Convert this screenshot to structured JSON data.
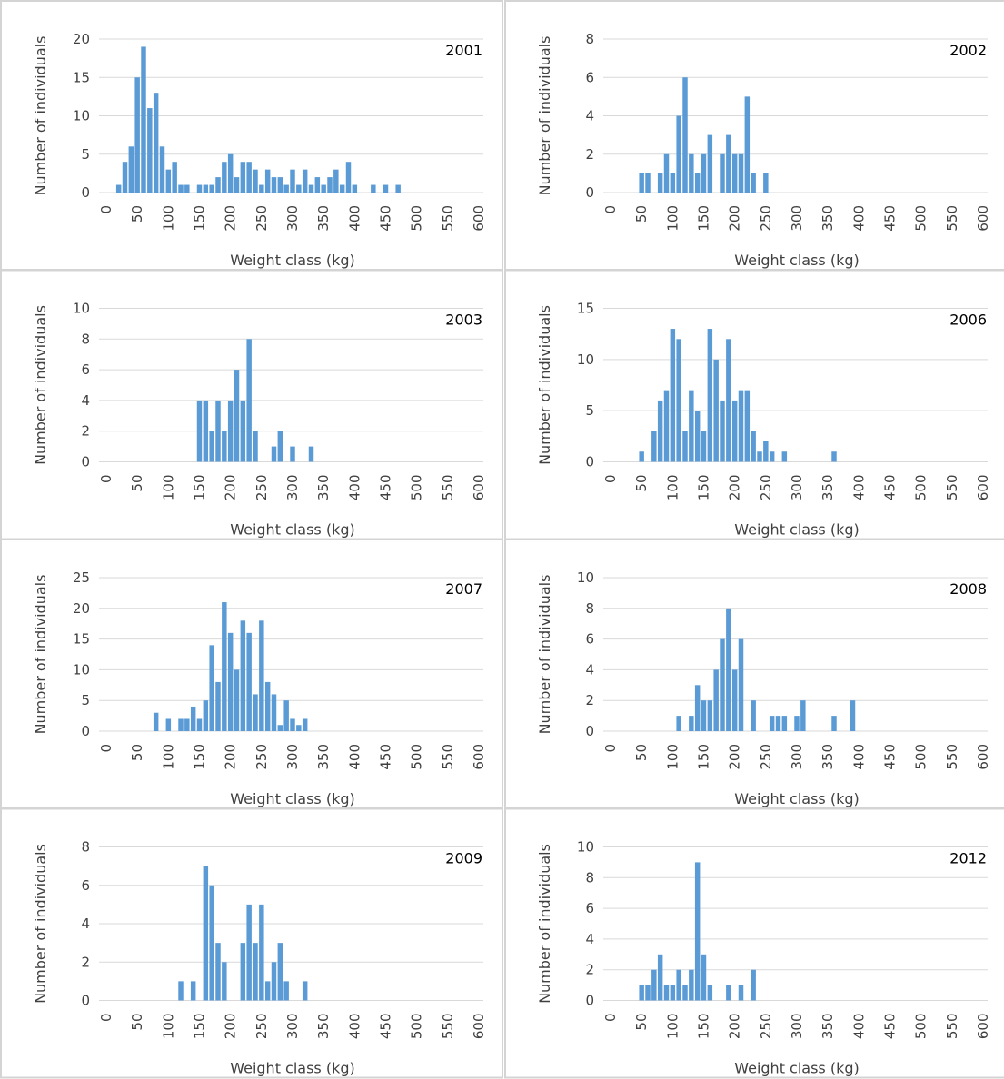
{
  "chart_data": [
    {
      "type": "bar",
      "title": "2001",
      "x_label": "Weight class (kg)",
      "y_label": "Number of individuals",
      "color": "#5b9bd5",
      "grid": true,
      "x": [
        20,
        30,
        40,
        50,
        60,
        70,
        80,
        90,
        100,
        110,
        120,
        130,
        150,
        160,
        170,
        180,
        190,
        200,
        210,
        220,
        230,
        240,
        250,
        260,
        270,
        280,
        290,
        300,
        310,
        320,
        330,
        340,
        350,
        360,
        370,
        380,
        390,
        400,
        430,
        450,
        470
      ],
      "values": [
        1,
        4,
        6,
        15,
        19,
        11,
        13,
        6,
        3,
        4,
        1,
        1,
        1,
        1,
        1,
        2,
        4,
        5,
        2,
        4,
        4,
        3,
        1,
        3,
        2,
        2,
        1,
        3,
        1,
        3,
        1,
        2,
        1,
        2,
        3,
        1,
        4,
        1,
        1,
        1,
        1
      ],
      "xlim": [
        0,
        600
      ],
      "xticks": [
        0,
        50,
        100,
        150,
        200,
        250,
        300,
        350,
        400,
        450,
        500,
        550,
        600
      ],
      "ylim": [
        0,
        20
      ],
      "yticks": [
        0,
        5,
        10,
        15,
        20
      ]
    },
    {
      "type": "bar",
      "title": "2002",
      "x_label": "Weight class (kg)",
      "y_label": "Number of individuals",
      "color": "#5b9bd5",
      "grid": true,
      "x": [
        50,
        60,
        80,
        90,
        100,
        110,
        120,
        130,
        140,
        150,
        160,
        180,
        190,
        200,
        210,
        220,
        230,
        250
      ],
      "values": [
        1,
        1,
        1,
        2,
        1,
        4,
        6,
        2,
        1,
        2,
        3,
        2,
        3,
        2,
        2,
        5,
        1,
        1
      ],
      "xlim": [
        0,
        600
      ],
      "xticks": [
        0,
        50,
        100,
        150,
        200,
        250,
        300,
        350,
        400,
        450,
        500,
        550,
        600
      ],
      "ylim": [
        0,
        8
      ],
      "yticks": [
        0,
        2,
        4,
        6,
        8
      ]
    },
    {
      "type": "bar",
      "title": "2003",
      "x_label": "Weight class (kg)",
      "y_label": "Number of individuals",
      "color": "#5b9bd5",
      "grid": true,
      "x": [
        150,
        160,
        170,
        180,
        190,
        200,
        210,
        220,
        230,
        240,
        270,
        280,
        300,
        330
      ],
      "values": [
        4,
        4,
        2,
        4,
        2,
        4,
        6,
        4,
        8,
        2,
        1,
        2,
        1,
        1
      ],
      "xlim": [
        0,
        600
      ],
      "xticks": [
        0,
        50,
        100,
        150,
        200,
        250,
        300,
        350,
        400,
        450,
        500,
        550,
        600
      ],
      "ylim": [
        0,
        10
      ],
      "yticks": [
        0,
        2,
        4,
        6,
        8,
        10
      ]
    },
    {
      "type": "bar",
      "title": "2006",
      "x_label": "Weight class (kg)",
      "y_label": "Number of individuals",
      "color": "#5b9bd5",
      "grid": true,
      "x": [
        50,
        70,
        80,
        90,
        100,
        110,
        120,
        130,
        140,
        150,
        160,
        170,
        180,
        190,
        200,
        210,
        220,
        230,
        240,
        250,
        260,
        280,
        360
      ],
      "values": [
        1,
        3,
        6,
        7,
        13,
        12,
        3,
        7,
        5,
        3,
        13,
        10,
        6,
        12,
        6,
        7,
        7,
        3,
        1,
        2,
        1,
        1,
        1
      ],
      "xlim": [
        0,
        600
      ],
      "xticks": [
        0,
        50,
        100,
        150,
        200,
        250,
        300,
        350,
        400,
        450,
        500,
        550,
        600
      ],
      "ylim": [
        0,
        15
      ],
      "yticks": [
        0,
        5,
        10,
        15
      ]
    },
    {
      "type": "bar",
      "title": "2007",
      "x_label": "Weight class (kg)",
      "y_label": "Number of individuals",
      "color": "#5b9bd5",
      "grid": true,
      "x": [
        80,
        100,
        120,
        130,
        140,
        150,
        160,
        170,
        180,
        190,
        200,
        210,
        220,
        230,
        240,
        250,
        260,
        270,
        280,
        290,
        300,
        310,
        320
      ],
      "values": [
        3,
        2,
        2,
        2,
        4,
        2,
        5,
        14,
        8,
        21,
        16,
        10,
        18,
        16,
        6,
        18,
        8,
        6,
        1,
        5,
        2,
        1,
        2
      ],
      "xlim": [
        0,
        600
      ],
      "xticks": [
        0,
        50,
        100,
        150,
        200,
        250,
        300,
        350,
        400,
        450,
        500,
        550,
        600
      ],
      "ylim": [
        0,
        25
      ],
      "yticks": [
        0,
        5,
        10,
        15,
        20,
        25
      ]
    },
    {
      "type": "bar",
      "title": "2008",
      "x_label": "Weight class (kg)",
      "y_label": "Number of individuals",
      "color": "#5b9bd5",
      "grid": true,
      "x": [
        110,
        130,
        140,
        150,
        160,
        170,
        180,
        190,
        200,
        210,
        230,
        260,
        270,
        280,
        300,
        310,
        360,
        390
      ],
      "values": [
        1,
        1,
        3,
        2,
        2,
        4,
        6,
        8,
        4,
        6,
        2,
        1,
        1,
        1,
        1,
        2,
        1,
        2
      ],
      "xlim": [
        0,
        600
      ],
      "xticks": [
        0,
        50,
        100,
        150,
        200,
        250,
        300,
        350,
        400,
        450,
        500,
        550,
        600
      ],
      "ylim": [
        0,
        10
      ],
      "yticks": [
        0,
        2,
        4,
        6,
        8,
        10
      ]
    },
    {
      "type": "bar",
      "title": "2009",
      "x_label": "Weight class (kg)",
      "y_label": "Number of individuals",
      "color": "#5b9bd5",
      "grid": true,
      "x": [
        120,
        140,
        160,
        170,
        180,
        190,
        220,
        230,
        240,
        250,
        260,
        270,
        280,
        290,
        320
      ],
      "values": [
        1,
        1,
        7,
        6,
        3,
        2,
        3,
        5,
        3,
        5,
        1,
        2,
        3,
        1,
        1
      ],
      "xlim": [
        0,
        600
      ],
      "xticks": [
        0,
        50,
        100,
        150,
        200,
        250,
        300,
        350,
        400,
        450,
        500,
        550,
        600
      ],
      "ylim": [
        0,
        8
      ],
      "yticks": [
        0,
        2,
        4,
        6,
        8
      ]
    },
    {
      "type": "bar",
      "title": "2012",
      "x_label": "Weight class (kg)",
      "y_label": "Number of individuals",
      "color": "#5b9bd5",
      "grid": true,
      "x": [
        50,
        60,
        70,
        80,
        90,
        100,
        110,
        120,
        130,
        140,
        150,
        160,
        190,
        210,
        230
      ],
      "values": [
        1,
        1,
        2,
        3,
        1,
        1,
        2,
        1,
        2,
        9,
        3,
        1,
        1,
        1,
        2
      ],
      "xlim": [
        0,
        600
      ],
      "xticks": [
        0,
        50,
        100,
        150,
        200,
        250,
        300,
        350,
        400,
        450,
        500,
        550,
        600
      ],
      "ylim": [
        0,
        10
      ],
      "yticks": [
        0,
        2,
        4,
        6,
        8,
        10
      ]
    }
  ]
}
